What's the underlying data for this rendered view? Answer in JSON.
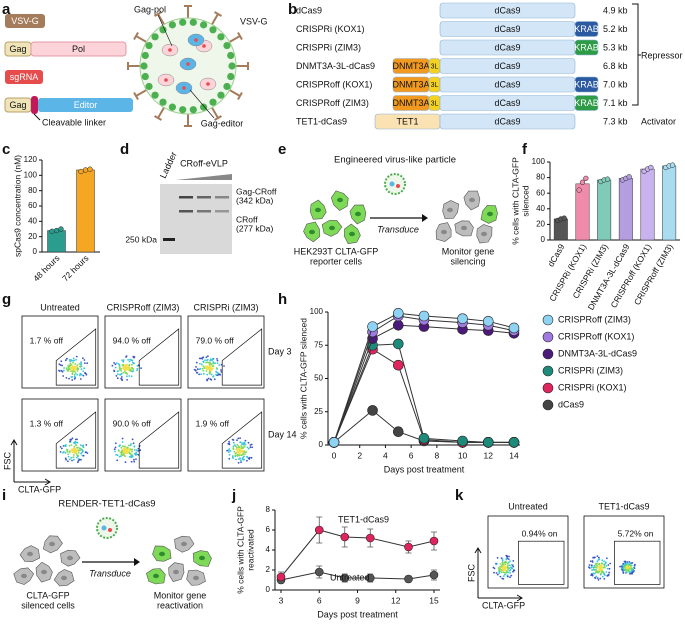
{
  "panel_labels": [
    "a",
    "b",
    "c",
    "d",
    "e",
    "f",
    "g",
    "h",
    "i",
    "j",
    "k"
  ],
  "a": {
    "vsvg": "VSV-G",
    "gag_pol": [
      "Gag",
      "Pol"
    ],
    "sgrna": "sgRNA",
    "gag_editor": [
      "Gag",
      "Editor"
    ],
    "linker": "Cleavable linker",
    "particle_labels": [
      "Gag-pol",
      "VSV-G",
      "Gag-editor"
    ]
  },
  "b": {
    "constructs": [
      {
        "name": "dCas9",
        "domains": [
          {
            "label": "dCas9",
            "color": "#d3e6f7"
          }
        ],
        "size": "4.9 kb"
      },
      {
        "name": "CRISPRi (KOX1)",
        "domains": [
          {
            "label": "dCas9",
            "color": "#d3e6f7"
          },
          {
            "label": "KRAB",
            "color": "#2c5aa0"
          }
        ],
        "size": "5.2 kb"
      },
      {
        "name": "CRISPRi (ZIM3)",
        "domains": [
          {
            "label": "dCas9",
            "color": "#d3e6f7"
          },
          {
            "label": "KRAB",
            "color": "#2e9b47"
          }
        ],
        "size": "5.3 kb"
      },
      {
        "name": "DNMT3A-3L-dCas9",
        "domains": [
          {
            "label": "DNMT3A",
            "color": "#f29a1f"
          },
          {
            "label": "3L",
            "color": "#f4d21f"
          },
          {
            "label": "dCas9",
            "color": "#d3e6f7"
          }
        ],
        "size": "6.8 kb"
      },
      {
        "name": "CRISPRoff (KOX1)",
        "domains": [
          {
            "label": "DNMT3A",
            "color": "#f29a1f"
          },
          {
            "label": "3L",
            "color": "#f4d21f"
          },
          {
            "label": "dCas9",
            "color": "#d3e6f7"
          },
          {
            "label": "KRAB",
            "color": "#2c5aa0"
          }
        ],
        "size": "7.0 kb"
      },
      {
        "name": "CRISPRoff (ZIM3)",
        "domains": [
          {
            "label": "DNMT3A",
            "color": "#f29a1f"
          },
          {
            "label": "3L",
            "color": "#f4d21f"
          },
          {
            "label": "dCas9",
            "color": "#d3e6f7"
          },
          {
            "label": "KRAB",
            "color": "#2e9b47"
          }
        ],
        "size": "7.1 kb"
      },
      {
        "name": "TET1-dCas9",
        "domains": [
          {
            "label": "TET1",
            "color": "#fbe2b3"
          },
          {
            "label": "dCas9",
            "color": "#d3e6f7"
          }
        ],
        "size": "7.3 kb"
      }
    ],
    "groups": [
      "Repressor",
      "Activator"
    ]
  },
  "d": {
    "ladder": "Ladder",
    "sample": "CRoff-eVLP",
    "bands": [
      [
        "Gag-CRoff",
        "(342 kDa)"
      ],
      [
        "CRoff",
        "(277 kDa)"
      ]
    ],
    "marker": "250 kDa"
  },
  "e": {
    "title": "Engineered virus-like particle",
    "arrow": "Transduce",
    "left": [
      "HEK293T CLTA-GFP",
      "reporter cells"
    ],
    "right": [
      "Monitor gene",
      "silencing"
    ]
  },
  "g": {
    "columns": [
      "Untreated",
      "CRISPRoff (ZIM3)",
      "CRISPRi (ZIM3)"
    ],
    "rows": [
      "Day 3",
      "Day 14"
    ],
    "gates": [
      [
        "1.7 % off",
        "94.0 % off",
        "79.0 % off"
      ],
      [
        "1.3 % off",
        "90.0 % off",
        "1.9 % off"
      ]
    ],
    "y_axis": "FSC",
    "x_axis": "CLTA-GFP"
  },
  "i": {
    "title": "RENDER-TET1-dCas9",
    "arrow": "Transduce",
    "left": [
      "CLTA-GFP",
      "silenced cells"
    ],
    "right": [
      "Monitor gene",
      "reactivation"
    ]
  },
  "k": {
    "columns": [
      "Untreated",
      "TET1-dCas9"
    ],
    "gates": [
      "0.94% on",
      "5.72% on"
    ],
    "y_axis": "FSC",
    "x_axis": "CLTA-GFP"
  },
  "chart_data": [
    {
      "type": "bar",
      "ylabel": [
        "spCas9 concentration (nM)"
      ],
      "categories": [
        "48 hours",
        "72 hours"
      ],
      "values": [
        28,
        107
      ],
      "points": [
        [
          27,
          28,
          30
        ],
        [
          105,
          107,
          108
        ]
      ],
      "colors": [
        "#2a9d8f",
        "#f5a623"
      ],
      "ylim": [
        0,
        120
      ],
      "yticks": [
        0,
        20,
        40,
        60,
        80,
        100,
        120
      ]
    },
    {
      "type": "bar",
      "ylabel": [
        "% cells with CLTA-GFP",
        "silenced"
      ],
      "categories": [
        "dCas9",
        "CRISPRi (KOX1)",
        "CRISPRi (ZIM3)",
        "DNMT3A-3L-dCas9",
        "CRISPRoff (KOX1)",
        "CRISPRoff (ZIM3)"
      ],
      "values": [
        27,
        72,
        77,
        79,
        91,
        95
      ],
      "points": [
        [
          25,
          27,
          28
        ],
        [
          64,
          74,
          79
        ],
        [
          75,
          77,
          78
        ],
        [
          77,
          79,
          81
        ],
        [
          88,
          91,
          93
        ],
        [
          93,
          95,
          96
        ]
      ],
      "colors": [
        "#555555",
        "#f08bab",
        "#7fcab8",
        "#b49ee0",
        "#c9b3ee",
        "#a9dcee"
      ],
      "ylim": [
        0,
        100
      ],
      "yticks": [
        0,
        20,
        40,
        60,
        80,
        100
      ]
    },
    {
      "type": "line",
      "ylabel": [
        "% cells with CLTA-GFP silenced"
      ],
      "xlabel": "Days post treatment",
      "x": [
        0,
        3,
        5,
        7,
        10,
        12,
        14
      ],
      "series": [
        {
          "name": "CRISPRoff (ZIM3)",
          "color": "#8fd3f4",
          "values": [
            2,
            89,
            99,
            97,
            95,
            93,
            88
          ]
        },
        {
          "name": "CRISPRoff (KOX1)",
          "color": "#a07ae0",
          "values": [
            2,
            85,
            97,
            94,
            92,
            90,
            86
          ]
        },
        {
          "name": "DNMT3A-3L-dCas9",
          "color": "#4b1a7a",
          "values": [
            2,
            80,
            90,
            89,
            87,
            86,
            84
          ]
        },
        {
          "name": "CRISPRi (ZIM3)",
          "color": "#1e8a7a",
          "values": [
            2,
            75,
            76,
            5,
            3,
            2,
            2
          ]
        },
        {
          "name": "CRISPRi (KOX1)",
          "color": "#e0245e",
          "values": [
            2,
            72,
            60,
            4,
            2,
            2,
            2
          ]
        },
        {
          "name": "dCas9",
          "color": "#444444",
          "values": [
            2,
            26,
            10,
            3,
            2,
            2,
            2
          ]
        }
      ],
      "xlim": [
        0,
        14
      ],
      "xticks": [
        0,
        2,
        4,
        6,
        8,
        10,
        12,
        14
      ],
      "ylim": [
        0,
        100
      ],
      "yticks": [
        0,
        25,
        50,
        75,
        100
      ],
      "legend": "right"
    },
    {
      "type": "line",
      "ylabel": [
        "% cells with CLTA-GFP",
        "reactivated"
      ],
      "xlabel": "Days post treatment",
      "x": [
        3,
        6,
        8,
        10,
        13,
        15
      ],
      "series": [
        {
          "name": "TET1-dCas9",
          "color": "#e0245e",
          "values": [
            1.3,
            6.0,
            5.3,
            5.2,
            4.3,
            4.9
          ],
          "errors": [
            0.5,
            1.3,
            1.0,
            0.9,
            0.6,
            0.9
          ]
        },
        {
          "name": "Untreated",
          "color": "#555555",
          "values": [
            1.0,
            1.8,
            1.2,
            1.2,
            1.1,
            1.5
          ],
          "errors": [
            0.3,
            0.6,
            0.4,
            0.4,
            0.3,
            0.5
          ]
        }
      ],
      "xlim": [
        3,
        15
      ],
      "xticks": [
        3,
        6,
        9,
        12,
        15
      ],
      "ylim": [
        0,
        8
      ],
      "yticks": [
        0,
        2,
        4,
        6,
        8
      ],
      "legend": "inline"
    }
  ]
}
